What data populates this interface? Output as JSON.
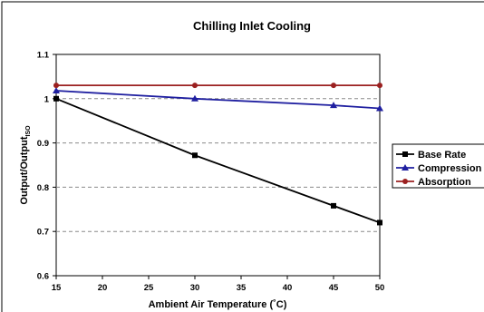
{
  "chart_data": {
    "type": "line",
    "title": "Chilling Inlet Cooling",
    "xlabel": "Ambient Air Temperature (˚C)",
    "ylabel": "Output/Output",
    "ylabel_subscript": "ISO",
    "xlim": [
      15,
      50
    ],
    "ylim": [
      0.6,
      1.1
    ],
    "x_ticks": [
      15,
      20,
      25,
      30,
      35,
      40,
      45,
      50
    ],
    "y_ticks": [
      0.6,
      0.7,
      0.8,
      0.9,
      1,
      1.1
    ],
    "x_tick_labels": [
      "15",
      "20",
      "25",
      "30",
      "35",
      "40",
      "45",
      "50"
    ],
    "y_tick_labels": [
      "0.6",
      "0.7",
      "0.8",
      "0.9",
      "1",
      "1.1"
    ],
    "grid": "horizontal dashed",
    "legend_position": "right",
    "series": [
      {
        "name": "Base Rate",
        "color": "#000000",
        "marker": "square",
        "x": [
          15,
          30,
          45,
          50
        ],
        "y": [
          1.0,
          0.872,
          0.758,
          0.72
        ]
      },
      {
        "name": "Compression",
        "color": "#1f1fa0",
        "marker": "triangle",
        "x": [
          15,
          30,
          45,
          50
        ],
        "y": [
          1.018,
          1.0,
          0.985,
          0.978
        ]
      },
      {
        "name": "Absorption",
        "color": "#9b2020",
        "marker": "circle",
        "x": [
          15,
          30,
          45,
          50
        ],
        "y": [
          1.03,
          1.03,
          1.03,
          1.03
        ]
      }
    ]
  }
}
